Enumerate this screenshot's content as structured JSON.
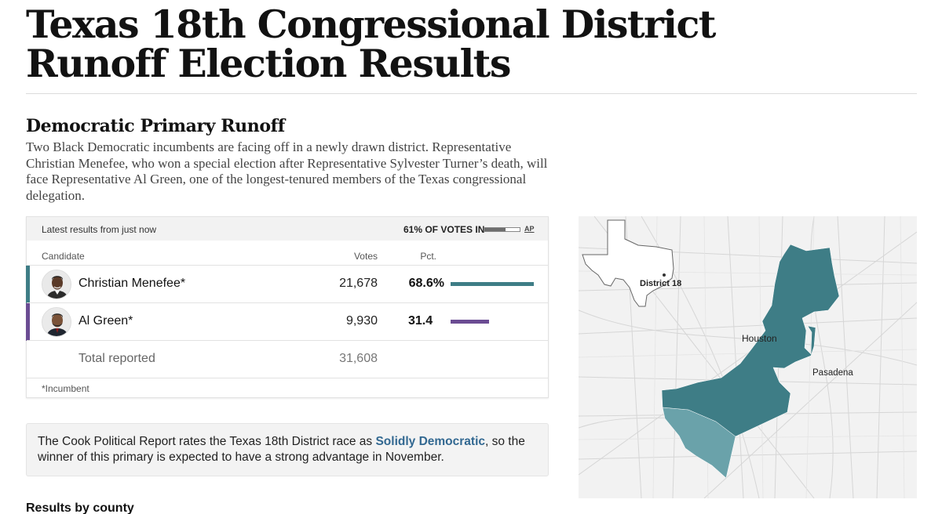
{
  "page": {
    "title": "Texas 18th Congressional District Runoff Election Results"
  },
  "section": {
    "title": "Democratic Primary Runoff",
    "intro": "Two Black Democratic incumbents are facing off in a newly drawn district. Representative Christian Menefee, who won a special election after Representative Sylvester Turner’s death, will face Representative Al Green, one of the longest-tenured members of the Texas congressional delegation."
  },
  "results": {
    "latest_label": "Latest results from just now",
    "votes_in_label": "61% OF VOTES IN",
    "votes_in_fraction": 0.61,
    "ap_label": "AP",
    "headers": {
      "candidate": "Candidate",
      "votes": "Votes",
      "pct": "Pct."
    },
    "candidates": [
      {
        "name": "Christian Menefee*",
        "votes": "21,678",
        "pct": "68.6%",
        "pct_value": 68.6,
        "color": "#3e7d86"
      },
      {
        "name": "Al Green*",
        "votes": "9,930",
        "pct": "31.4",
        "pct_value": 31.4,
        "color": "#6b4c93"
      }
    ],
    "total_label": "Total reported",
    "total_votes": "31,608",
    "incumbent_note": "*Incumbent"
  },
  "cook": {
    "text_before": "The Cook Political Report rates the Texas 18th District race as ",
    "link_text": "Solidly Democratic",
    "text_after": ", so the winner of this primary is expected to have a strong advantage in November."
  },
  "county": {
    "heading": "Results by county"
  },
  "map": {
    "district_label": "District 18",
    "city_labels": [
      "Houston",
      "Pasadena"
    ],
    "district_color": "#3e7d86",
    "district_light_color": "#6aa2aa"
  }
}
